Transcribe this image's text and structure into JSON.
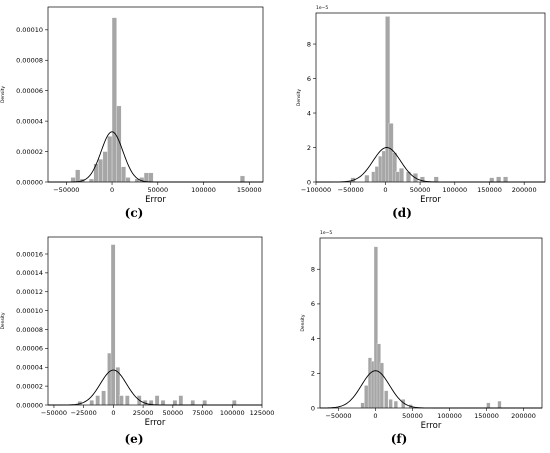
{
  "chart_data": [
    {
      "id": "c",
      "type": "histogram",
      "caption": "(c)",
      "xlabel": "Error",
      "ylabel": "Density",
      "offset_text": "",
      "xlim": [
        -70000,
        165000
      ],
      "ylim": [
        0,
        0.000115
      ],
      "xticks": [
        -50000,
        0,
        50000,
        100000,
        150000
      ],
      "xtick_labels": [
        "−50000",
        "0",
        "50000",
        "100000",
        "150000"
      ],
      "yticks": [
        0,
        2e-05,
        4e-05,
        6e-05,
        8e-05,
        0.0001
      ],
      "ytick_labels": [
        "0.00000",
        "0.00002",
        "0.00004",
        "0.00006",
        "0.00008",
        "0.00010"
      ],
      "bins": [
        [
          -45000,
          3e-06
        ],
        [
          -40000,
          8e-06
        ],
        [
          -35000,
          2e-06
        ],
        [
          -25000,
          2e-06
        ],
        [
          -20000,
          1.2e-05
        ],
        [
          -15000,
          1.5e-05
        ],
        [
          -10000,
          2e-05
        ],
        [
          -5000,
          3e-05
        ],
        [
          0,
          0.000108
        ],
        [
          5000,
          5e-05
        ],
        [
          10000,
          1e-05
        ],
        [
          15000,
          3e-06
        ],
        [
          25000,
          2e-06
        ],
        [
          30000,
          3e-06
        ],
        [
          35000,
          6e-06
        ],
        [
          40000,
          6e-06
        ],
        [
          140000,
          4e-06
        ]
      ],
      "bin_width": 5000,
      "kde": {
        "mean": 0,
        "std": 12000,
        "peak": 3.3e-05
      }
    },
    {
      "id": "d",
      "type": "histogram",
      "caption": "(d)",
      "xlabel": "Error",
      "ylabel": "Density",
      "offset_text": "1e−5",
      "xlim": [
        -100000,
        230000
      ],
      "ylim": [
        0,
        9.8
      ],
      "xticks": [
        -100000,
        -50000,
        0,
        50000,
        100000,
        150000,
        200000
      ],
      "xtick_labels": [
        "−100000",
        "−50000",
        "0",
        "50000",
        "100000",
        "150000",
        "200000"
      ],
      "yticks": [
        0,
        2,
        4,
        6,
        8
      ],
      "ytick_labels": [
        "0",
        "2",
        "4",
        "6",
        "8"
      ],
      "bins": [
        [
          -50000,
          0.25
        ],
        [
          -30000,
          0.4
        ],
        [
          -20000,
          0.6
        ],
        [
          -15000,
          0.9
        ],
        [
          -10000,
          1.5
        ],
        [
          -5000,
          1.8
        ],
        [
          0,
          9.6
        ],
        [
          5000,
          3.4
        ],
        [
          10000,
          1.7
        ],
        [
          15000,
          0.6
        ],
        [
          20000,
          0.8
        ],
        [
          30000,
          0.6
        ],
        [
          40000,
          0.5
        ],
        [
          50000,
          0.3
        ],
        [
          70000,
          0.3
        ],
        [
          150000,
          0.25
        ],
        [
          160000,
          0.3
        ],
        [
          170000,
          0.3
        ]
      ],
      "bin_width": 6500,
      "kde": {
        "mean": 2000,
        "std": 20000,
        "peak": 2.0
      }
    },
    {
      "id": "e",
      "type": "histogram",
      "caption": "(e)",
      "xlabel": "Error",
      "ylabel": "Density",
      "offset_text": "",
      "xlim": [
        -55000,
        125000
      ],
      "ylim": [
        0,
        0.000178
      ],
      "xticks": [
        -50000,
        -25000,
        0,
        25000,
        50000,
        75000,
        100000,
        125000
      ],
      "xtick_labels": [
        "−50000",
        "−25000",
        "0",
        "25000",
        "50000",
        "75000",
        "100000",
        "125000"
      ],
      "yticks": [
        0,
        2e-05,
        4e-05,
        6e-05,
        8e-05,
        0.0001,
        0.00012,
        0.00014,
        0.00016
      ],
      "ytick_labels": [
        "0.00000",
        "0.00002",
        "0.00004",
        "0.00006",
        "0.00008",
        "0.00010",
        "0.00012",
        "0.00014",
        "0.00016"
      ],
      "bins": [
        [
          -30000,
          4e-06
        ],
        [
          -20000,
          5e-06
        ],
        [
          -15000,
          1e-05
        ],
        [
          -10000,
          1.5e-05
        ],
        [
          -5000,
          5.5e-05
        ],
        [
          -2000,
          0.00017
        ],
        [
          2000,
          4e-05
        ],
        [
          5000,
          1e-05
        ],
        [
          10000,
          1e-05
        ],
        [
          20000,
          1e-05
        ],
        [
          25000,
          5e-06
        ],
        [
          30000,
          5e-06
        ],
        [
          35000,
          1e-05
        ],
        [
          40000,
          5e-06
        ],
        [
          50000,
          5e-06
        ],
        [
          55000,
          1e-05
        ],
        [
          65000,
          5e-06
        ],
        [
          75000,
          5e-06
        ],
        [
          100000,
          5e-06
        ]
      ],
      "bin_width": 3500,
      "kde": {
        "mean": 0,
        "std": 11000,
        "peak": 3.7e-05
      }
    },
    {
      "id": "f",
      "type": "histogram",
      "caption": "(f)",
      "xlabel": "Error",
      "ylabel": "Density",
      "offset_text": "1e−5",
      "xlim": [
        -75000,
        225000
      ],
      "ylim": [
        0,
        9.8
      ],
      "xticks": [
        -50000,
        0,
        50000,
        100000,
        150000,
        200000
      ],
      "xtick_labels": [
        "−50000",
        "0",
        "50000",
        "100000",
        "150000",
        "200000"
      ],
      "yticks": [
        0,
        2,
        4,
        6,
        8
      ],
      "ytick_labels": [
        "0",
        "2",
        "4",
        "6",
        "8"
      ],
      "bins": [
        [
          -20000,
          0.3
        ],
        [
          -15000,
          1.3
        ],
        [
          -10000,
          2.9
        ],
        [
          -6000,
          2.7
        ],
        [
          -2000,
          9.3
        ],
        [
          2000,
          3.7
        ],
        [
          6000,
          2.6
        ],
        [
          12000,
          1.0
        ],
        [
          18000,
          0.5
        ],
        [
          25000,
          0.4
        ],
        [
          35000,
          0.5
        ],
        [
          45000,
          0.2
        ],
        [
          150000,
          0.3
        ],
        [
          165000,
          0.4
        ]
      ],
      "bin_width": 5000,
      "kde": {
        "mean": 0,
        "std": 19000,
        "peak": 2.15
      }
    }
  ]
}
